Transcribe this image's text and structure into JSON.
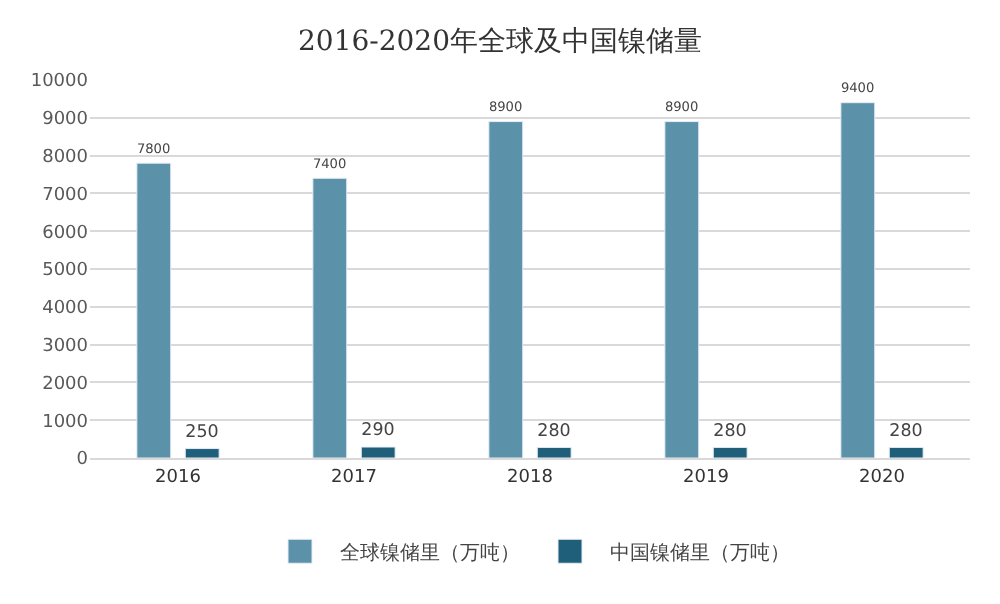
{
  "chart_data": {
    "type": "bar",
    "title": "2016-2020年全球及中国镍储量",
    "categories": [
      "2016",
      "2017",
      "2018",
      "2019",
      "2020"
    ],
    "series": [
      {
        "name": "全球镍储里（万吨）",
        "color": "#5b92aa",
        "values": [
          7800,
          7400,
          8900,
          8900,
          9400
        ]
      },
      {
        "name": "中国镍储里（万吨）",
        "color": "#1f5f7a",
        "values": [
          250,
          290,
          280,
          280,
          280
        ]
      }
    ],
    "ylim": [
      0,
      10000
    ],
    "yticks": [
      0,
      1000,
      2000,
      3000,
      4000,
      5000,
      6000,
      7000,
      8000,
      9000,
      10000
    ],
    "grid": "y",
    "legend": "bottom",
    "data_labels": true
  }
}
